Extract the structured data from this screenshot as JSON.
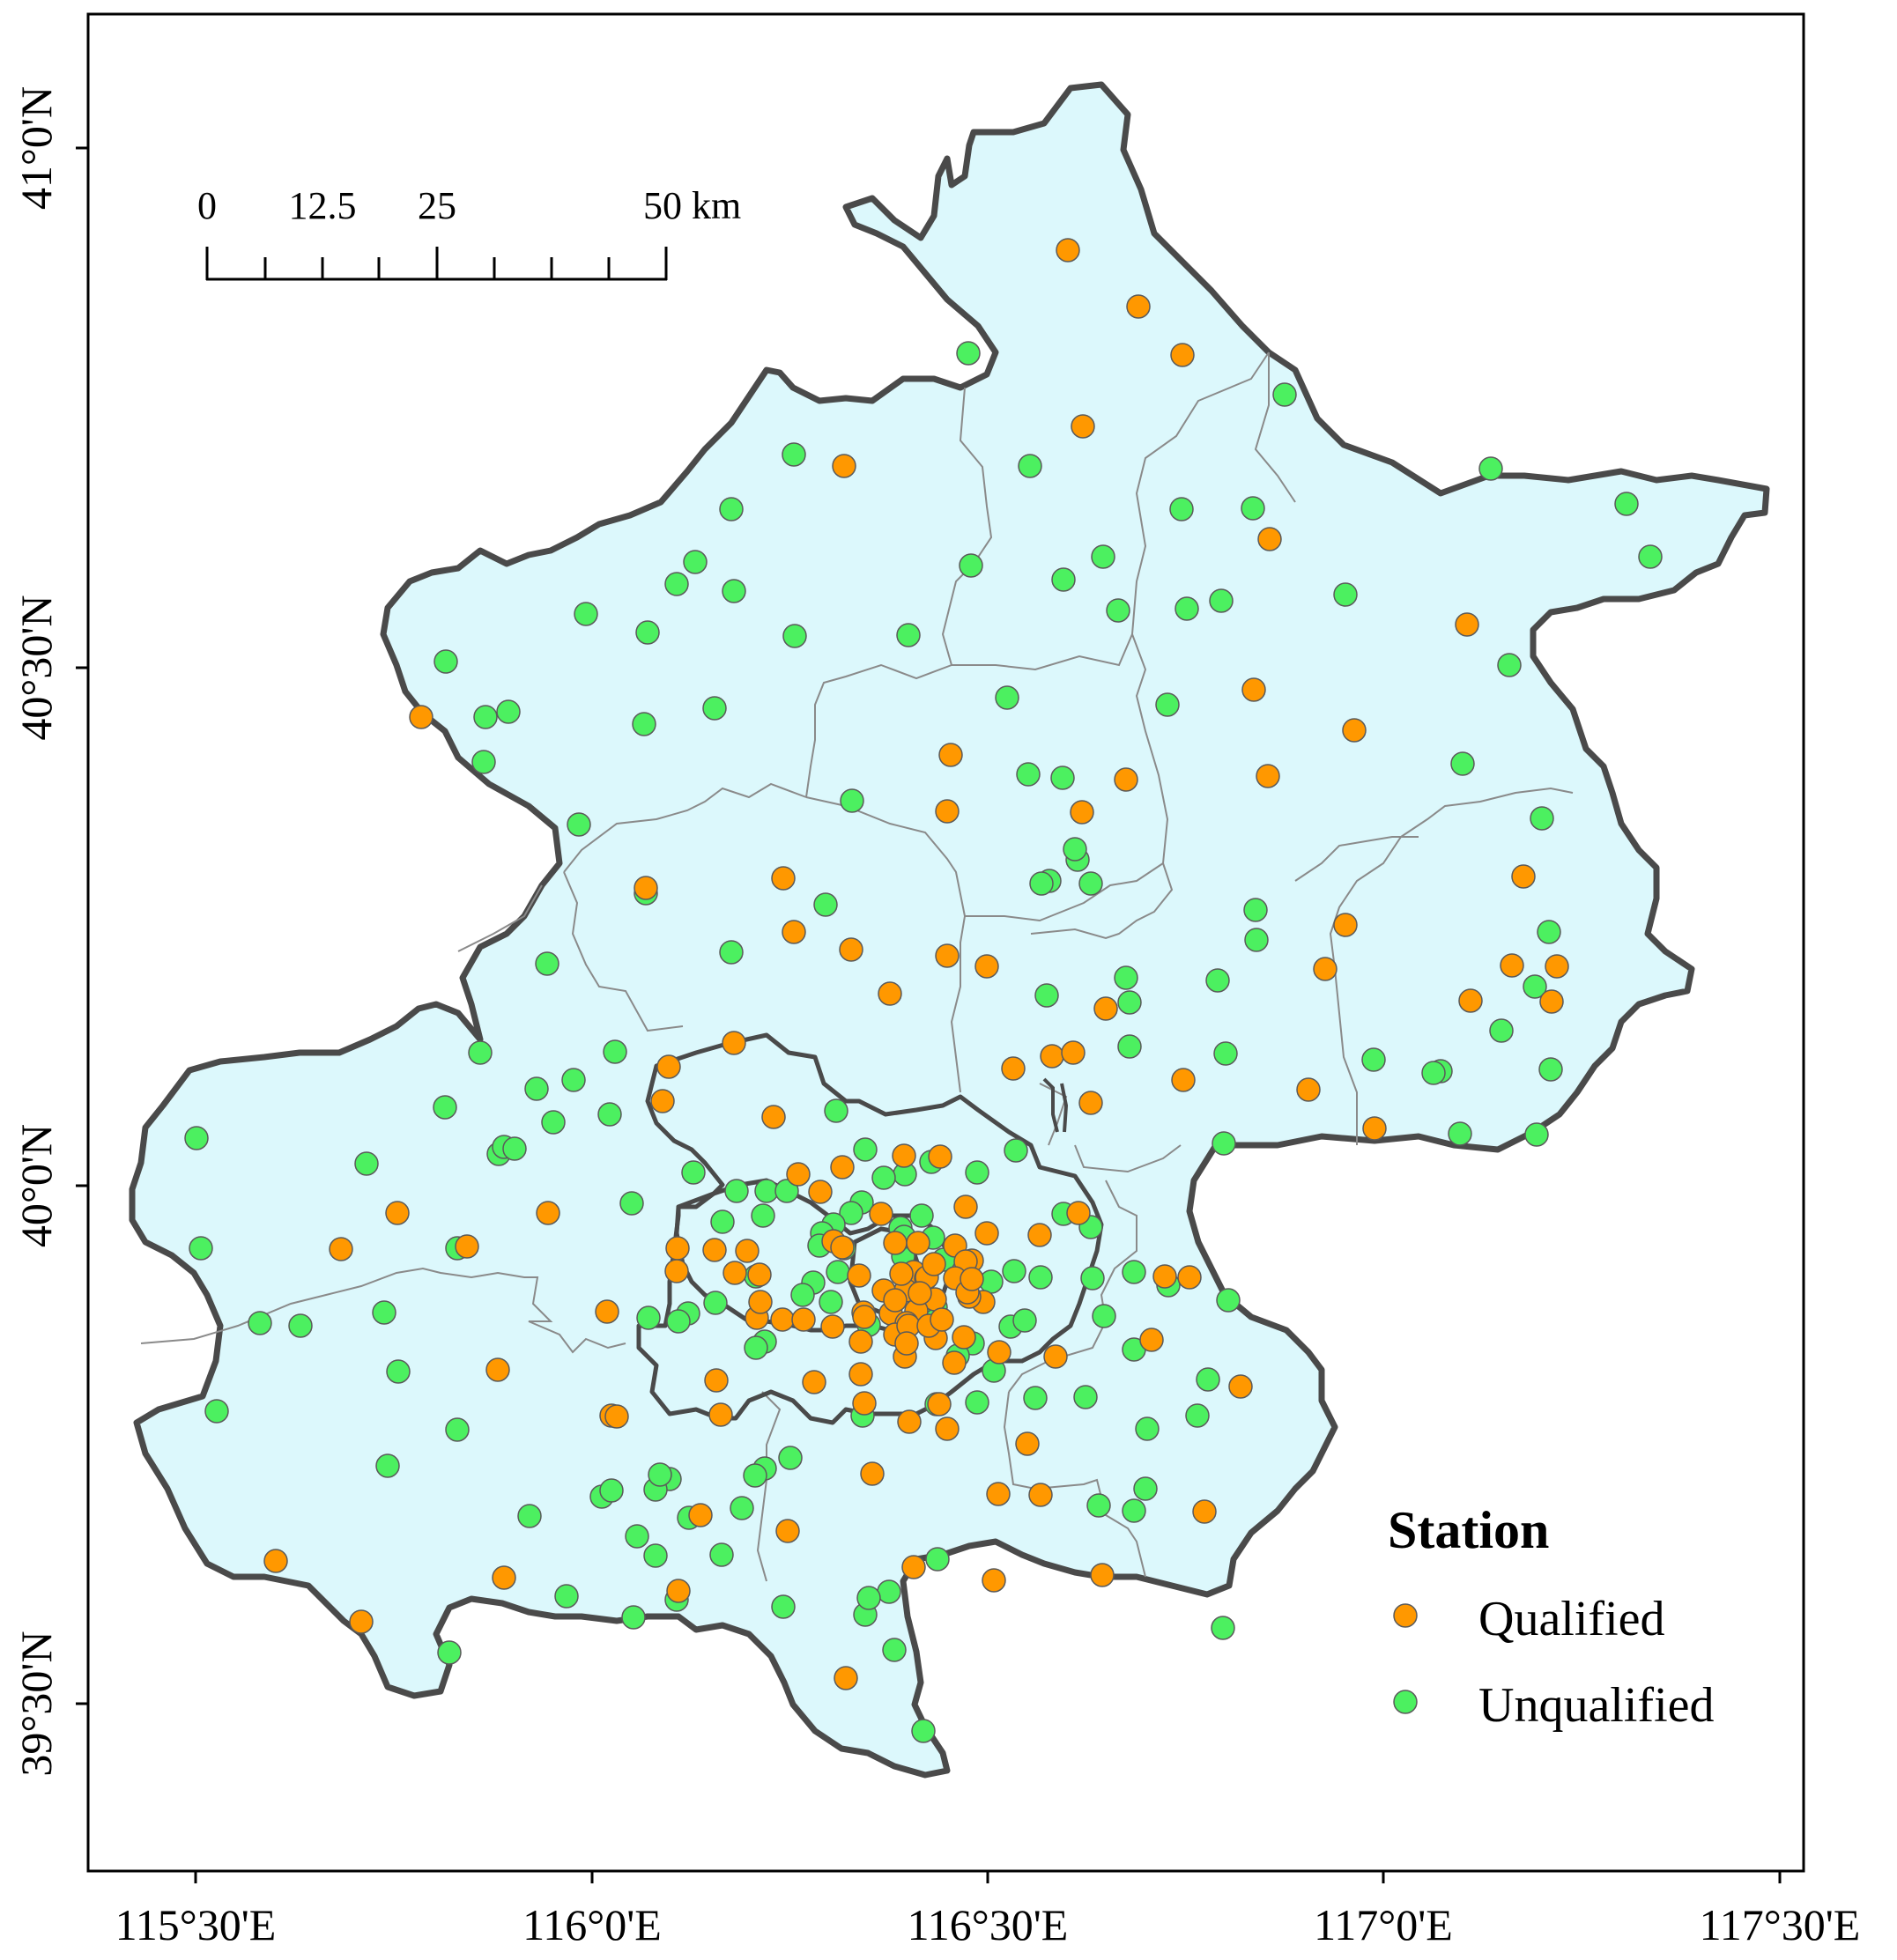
{
  "map": {
    "fill_color": "#dcf8fc",
    "outline_color": "#4a4a4a",
    "district_line_color": "#8a8a8a"
  },
  "axes": {
    "lon_ticks": [
      "115°30'E",
      "116°0'E",
      "116°30'E",
      "117°0'E",
      "117°30'E"
    ],
    "lat_ticks": [
      "41°0'N",
      "40°30'N",
      "40°0'N",
      "39°30'N"
    ]
  },
  "scale_bar": {
    "labels": [
      "0",
      "12.5",
      "25",
      "50 km"
    ]
  },
  "legend": {
    "title": "Station",
    "items": [
      {
        "label": "Qualified",
        "color": "#ff9800"
      },
      {
        "label": "Unqualified",
        "color": "#4cf060"
      }
    ]
  },
  "colors": {
    "qualified": "#ff9800",
    "unqualified": "#4cf060",
    "marker_edge": "#5a5a5a"
  }
}
